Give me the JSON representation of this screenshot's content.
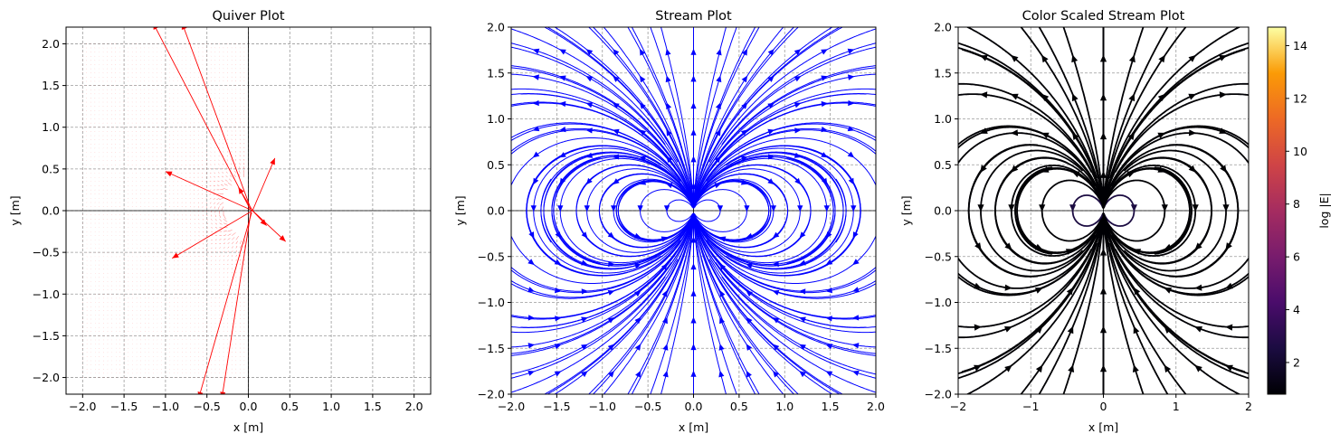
{
  "chart_data": [
    {
      "type": "vector-field",
      "title": "Quiver Plot",
      "xlabel": "x [m]",
      "ylabel": "y [m]",
      "xlim": [
        -2.2,
        2.2
      ],
      "ylim": [
        -2.2,
        2.2
      ],
      "xticks": [
        "−2.0",
        "−1.5",
        "−1.0",
        "−0.5",
        "0.0",
        "0.5",
        "1.0",
        "1.5",
        "2.0"
      ],
      "yticks": [
        "−2.0",
        "−1.5",
        "−1.0",
        "−0.5",
        "0.0",
        "0.5",
        "1.0",
        "1.5",
        "2.0"
      ],
      "grid": true,
      "arrow_color": "#ff0000",
      "field_grid_extent": [
        -2.0,
        2.0
      ],
      "large_arrows": [
        {
          "from": [
            0.02,
            0.02
          ],
          "to": [
            -1.15,
            2.25
          ]
        },
        {
          "from": [
            0.03,
            0.02
          ],
          "to": [
            -0.8,
            2.25
          ]
        },
        {
          "from": [
            0.05,
            0.0
          ],
          "to": [
            -1.0,
            0.47
          ]
        },
        {
          "from": [
            0.05,
            0.0
          ],
          "to": [
            -0.92,
            -0.57
          ]
        },
        {
          "from": [
            0.05,
            0.0
          ],
          "to": [
            0.32,
            0.63
          ]
        },
        {
          "from": [
            0.05,
            0.0
          ],
          "to": [
            0.45,
            -0.37
          ]
        },
        {
          "from": [
            0.04,
            -0.02
          ],
          "to": [
            -0.6,
            -2.25
          ]
        },
        {
          "from": [
            0.03,
            -0.02
          ],
          "to": [
            -0.32,
            -2.25
          ]
        },
        {
          "from": [
            0.05,
            0.0
          ],
          "to": [
            -0.12,
            0.28
          ]
        },
        {
          "from": [
            0.05,
            0.0
          ],
          "to": [
            0.22,
            -0.18
          ]
        }
      ]
    },
    {
      "type": "streamplot",
      "title": "Stream Plot",
      "xlabel": "x [m]",
      "ylabel": "y [m]",
      "xlim": [
        -2.0,
        2.0
      ],
      "ylim": [
        -2.0,
        2.0
      ],
      "xticks": [
        "−2.0",
        "−1.5",
        "−1.0",
        "−0.5",
        "0.0",
        "0.5",
        "1.0",
        "1.5",
        "2.0"
      ],
      "yticks": [
        "−2.0",
        "−1.5",
        "−1.0",
        "−0.5",
        "0.0",
        "0.5",
        "1.0",
        "1.5",
        "2.0"
      ],
      "grid": true,
      "line_color": "#0000ff",
      "field": "dipole"
    },
    {
      "type": "streamplot",
      "title": "Color Scaled Stream Plot",
      "xlabel": "x [m]",
      "ylabel": "y [m]",
      "xlim": [
        -2,
        2
      ],
      "ylim": [
        -2,
        2
      ],
      "xticks": [
        "−2",
        "−1",
        "0",
        "1",
        "2"
      ],
      "yticks": [
        "−2.0",
        "−1.5",
        "−1.0",
        "−0.5",
        "0.0",
        "0.5",
        "1.0",
        "1.5",
        "2.0"
      ],
      "grid": true,
      "colormap": "inferno",
      "colorbar": {
        "label": "log |E|",
        "range": [
          0.8,
          14.7
        ],
        "ticks": [
          "2",
          "4",
          "6",
          "8",
          "10",
          "12",
          "14"
        ]
      },
      "field": "dipole"
    }
  ]
}
